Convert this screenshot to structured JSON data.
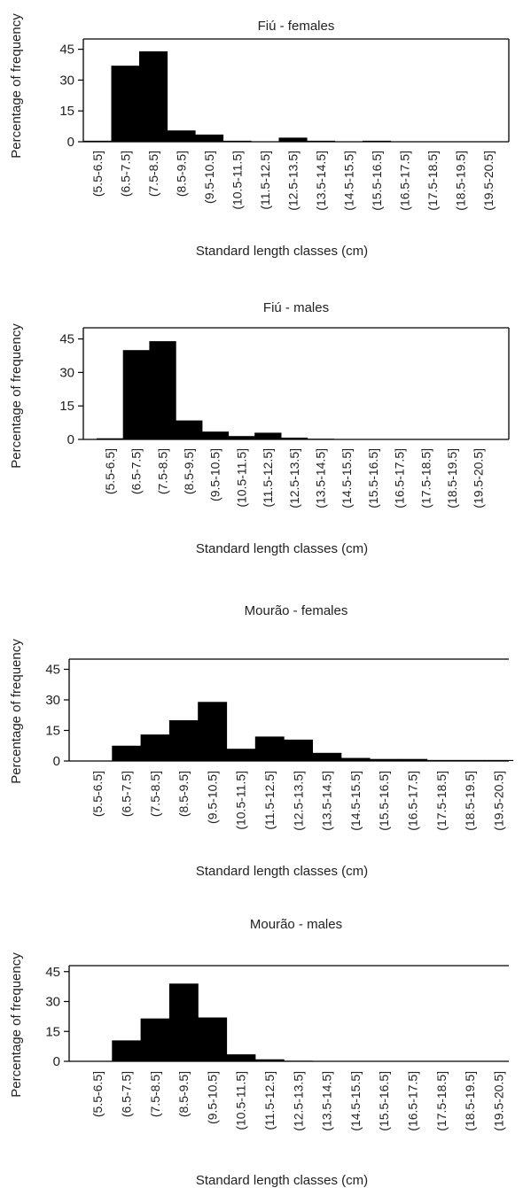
{
  "charts": [
    {
      "type": "bar",
      "title": "Fiú - females",
      "xlabel": "Standard length classes (cm)",
      "ylabel": "Percentage of frequency",
      "categories": [
        "(5.5-6.5]",
        "(6.5-7.5]",
        "(7.5-8.5]",
        "(8.5-9.5]",
        "(9.5-10.5]",
        "(10.5-11.5]",
        "(11.5-12.5]",
        "(12.5-13.5]",
        "(13.5-14.5]",
        "(14.5-15.5]",
        "(15.5-16.5]",
        "(16.5-17.5]",
        "(17.5-18.5]",
        "(18.5-19.5]",
        "(19.5-20.5]"
      ],
      "values": [
        0.5,
        37,
        44,
        5.5,
        3.5,
        0.5,
        0,
        2,
        0.5,
        0.2,
        0.5,
        0,
        0,
        0,
        0
      ],
      "yticks": [
        0,
        15,
        30,
        45
      ],
      "ylim": [
        0,
        50
      ]
    },
    {
      "type": "bar",
      "title": "Fiú - males",
      "xlabel": "Standard length classes (cm)",
      "ylabel": "Percentage of frequency",
      "categories": [
        "(5.5-6.5]",
        "(6.5-7.5]",
        "(7.5-8.5]",
        "(8.5-9.5]",
        "(9.5-10.5]",
        "(10.5-11.5]",
        "(11.5-12.5]",
        "(12.5-13.5]",
        "(13.5-14.5]",
        "(14.5-15.5]",
        "(15.5-16.5]",
        "(16.5-17.5]",
        "(17.5-18.5]",
        "(18.5-19.5]",
        "(19.5-20.5]"
      ],
      "values": [
        0.5,
        40,
        44,
        8.5,
        3.5,
        1.5,
        3,
        0.8,
        0.3,
        0,
        0,
        0,
        0,
        0,
        0
      ],
      "yticks": [
        0,
        15,
        30,
        45
      ],
      "ylim": [
        0,
        50
      ]
    },
    {
      "type": "bar",
      "title": "Mourão - females",
      "xlabel": "Standard length classes (cm)",
      "ylabel": "Percentage of frequency",
      "categories": [
        "(5.5-6.5]",
        "(6.5-7.5]",
        "(7.5-8.5]",
        "(8.5-9.5]",
        "(9.5-10.5]",
        "(10.5-11.5]",
        "(11.5-12.5]",
        "(12.5-13.5]",
        "(13.5-14.5]",
        "(14.5-15.5]",
        "(15.5-16.5]",
        "(16.5-17.5]",
        "(17.5-18.5]",
        "(18.5-19.5]",
        "(19.5-20.5]"
      ],
      "values": [
        0,
        7.5,
        13,
        20,
        29,
        6,
        12,
        10.5,
        4,
        1.5,
        1,
        1,
        0.5,
        0.5,
        0.5
      ],
      "yticks": [
        0,
        15,
        30,
        45
      ],
      "ylim": [
        0,
        50
      ]
    },
    {
      "type": "bar",
      "title": "Mourão - males",
      "xlabel": "Standard length classes (cm)",
      "ylabel": "Percentage of frequency",
      "categories": [
        "(5.5-6.5]",
        "(6.5-7.5]",
        "(7.5-8.5]",
        "(8.5-9.5]",
        "(9.5-10.5]",
        "(10.5-11.5]",
        "(11.5-12.5]",
        "(12.5-13.5]",
        "(13.5-14.5]",
        "(14.5-15.5]",
        "(15.5-16.5]",
        "(16.5-17.5]",
        "(17.5-18.5]",
        "(18.5-19.5]",
        "(19.5-20.5]"
      ],
      "values": [
        0,
        10.5,
        21.5,
        39,
        22,
        3.5,
        1,
        0.3,
        0,
        0,
        0,
        0,
        0,
        0,
        0
      ],
      "yticks": [
        0,
        15,
        30,
        45
      ],
      "ylim": [
        0,
        48
      ]
    }
  ],
  "chart_data": [
    {
      "type": "bar",
      "title": "Fiú - females",
      "xlabel": "Standard length classes (cm)",
      "ylabel": "Percentage of frequency",
      "categories": [
        "(5.5-6.5]",
        "(6.5-7.5]",
        "(7.5-8.5]",
        "(8.5-9.5]",
        "(9.5-10.5]",
        "(10.5-11.5]",
        "(11.5-12.5]",
        "(12.5-13.5]",
        "(13.5-14.5]",
        "(14.5-15.5]",
        "(15.5-16.5]",
        "(16.5-17.5]",
        "(17.5-18.5]",
        "(18.5-19.5]",
        "(19.5-20.5]"
      ],
      "values": [
        0.5,
        37,
        44,
        5.5,
        3.5,
        0.5,
        0,
        2,
        0.5,
        0.2,
        0.5,
        0,
        0,
        0,
        0
      ],
      "yticks": [
        0,
        15,
        30,
        45
      ],
      "ylim": [
        0,
        50
      ]
    },
    {
      "type": "bar",
      "title": "Fiú - males",
      "xlabel": "Standard length classes (cm)",
      "ylabel": "Percentage of frequency",
      "categories": [
        "(5.5-6.5]",
        "(6.5-7.5]",
        "(7.5-8.5]",
        "(8.5-9.5]",
        "(9.5-10.5]",
        "(10.5-11.5]",
        "(11.5-12.5]",
        "(12.5-13.5]",
        "(13.5-14.5]",
        "(14.5-15.5]",
        "(15.5-16.5]",
        "(16.5-17.5]",
        "(17.5-18.5]",
        "(18.5-19.5]",
        "(19.5-20.5]"
      ],
      "values": [
        0.5,
        40,
        44,
        8.5,
        3.5,
        1.5,
        3,
        0.8,
        0.3,
        0,
        0,
        0,
        0,
        0,
        0
      ],
      "yticks": [
        0,
        15,
        30,
        45
      ],
      "ylim": [
        0,
        50
      ]
    },
    {
      "type": "bar",
      "title": "Mourão - females",
      "xlabel": "Standard length classes (cm)",
      "ylabel": "Percentage of frequency",
      "categories": [
        "(5.5-6.5]",
        "(6.5-7.5]",
        "(7.5-8.5]",
        "(8.5-9.5]",
        "(9.5-10.5]",
        "(10.5-11.5]",
        "(11.5-12.5]",
        "(12.5-13.5]",
        "(13.5-14.5]",
        "(14.5-15.5]",
        "(15.5-16.5]",
        "(16.5-17.5]",
        "(17.5-18.5]",
        "(18.5-19.5]",
        "(19.5-20.5]"
      ],
      "values": [
        0,
        7.5,
        13,
        20,
        29,
        6,
        12,
        10.5,
        4,
        1.5,
        1,
        1,
        0.5,
        0.5,
        0.5
      ],
      "yticks": [
        0,
        15,
        30,
        45
      ],
      "ylim": [
        0,
        50
      ]
    },
    {
      "type": "bar",
      "title": "Mourão - males",
      "xlabel": "Standard length classes (cm)",
      "ylabel": "Percentage of frequency",
      "categories": [
        "(5.5-6.5]",
        "(6.5-7.5]",
        "(7.5-8.5]",
        "(8.5-9.5]",
        "(9.5-10.5]",
        "(10.5-11.5]",
        "(11.5-12.5]",
        "(12.5-13.5]",
        "(13.5-14.5]",
        "(14.5-15.5]",
        "(15.5-16.5]",
        "(16.5-17.5]",
        "(17.5-18.5]",
        "(18.5-19.5]",
        "(19.5-20.5]"
      ],
      "values": [
        0,
        10.5,
        21.5,
        39,
        22,
        3.5,
        1,
        0.3,
        0,
        0,
        0,
        0,
        0,
        0,
        0
      ],
      "yticks": [
        0,
        15,
        30,
        45
      ],
      "ylim": [
        0,
        48
      ]
    }
  ],
  "colors": {
    "bar": "#000000",
    "axis": "#000000",
    "text": "#222222"
  }
}
